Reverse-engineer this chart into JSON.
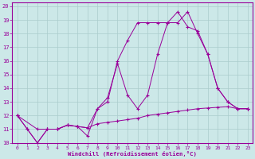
{
  "xlabel": "Windchill (Refroidissement éolien,°C)",
  "background_color": "#cce8e8",
  "line_color": "#990099",
  "grid_color": "#aacccc",
  "xlim": [
    -0.5,
    23.5
  ],
  "ylim": [
    10,
    20.3
  ],
  "yticks": [
    10,
    11,
    12,
    13,
    14,
    15,
    16,
    17,
    18,
    19,
    20
  ],
  "xticks": [
    0,
    1,
    2,
    3,
    4,
    5,
    6,
    7,
    8,
    9,
    10,
    11,
    12,
    13,
    14,
    15,
    16,
    17,
    18,
    19,
    20,
    21,
    22,
    23
  ],
  "line1_x": [
    0,
    1,
    2,
    3,
    4,
    5,
    6,
    7,
    8,
    9,
    10,
    11,
    12,
    13,
    14,
    15,
    16,
    17,
    18,
    19,
    20,
    21,
    22,
    23
  ],
  "line1_y": [
    12.0,
    11.0,
    10.0,
    11.0,
    11.0,
    11.3,
    11.2,
    11.1,
    11.4,
    11.5,
    11.6,
    11.7,
    11.8,
    12.0,
    12.1,
    12.2,
    12.3,
    12.4,
    12.5,
    12.55,
    12.6,
    12.65,
    12.5,
    12.5
  ],
  "line2_x": [
    0,
    2,
    3,
    4,
    5,
    6,
    7,
    8,
    9,
    10,
    11,
    12,
    13,
    14,
    15,
    16,
    17,
    18,
    19,
    20,
    21,
    22,
    23
  ],
  "line2_y": [
    12.0,
    11.0,
    11.0,
    11.0,
    11.3,
    11.2,
    11.1,
    12.5,
    13.3,
    15.8,
    13.5,
    12.5,
    13.5,
    16.5,
    18.8,
    18.8,
    19.6,
    18.0,
    16.5,
    14.0,
    13.0,
    12.5,
    12.5
  ],
  "line3_x": [
    0,
    1,
    2,
    3,
    4,
    5,
    6,
    7,
    8,
    9,
    10,
    11,
    12,
    13,
    14,
    15,
    16,
    17,
    18,
    19,
    20,
    21,
    22,
    23
  ],
  "line3_y": [
    12.0,
    11.0,
    10.0,
    11.0,
    11.0,
    11.3,
    11.2,
    10.5,
    12.5,
    13.0,
    16.0,
    17.5,
    18.8,
    18.8,
    18.8,
    18.8,
    19.6,
    18.5,
    18.2,
    16.5,
    14.0,
    13.0,
    12.5,
    12.5
  ]
}
